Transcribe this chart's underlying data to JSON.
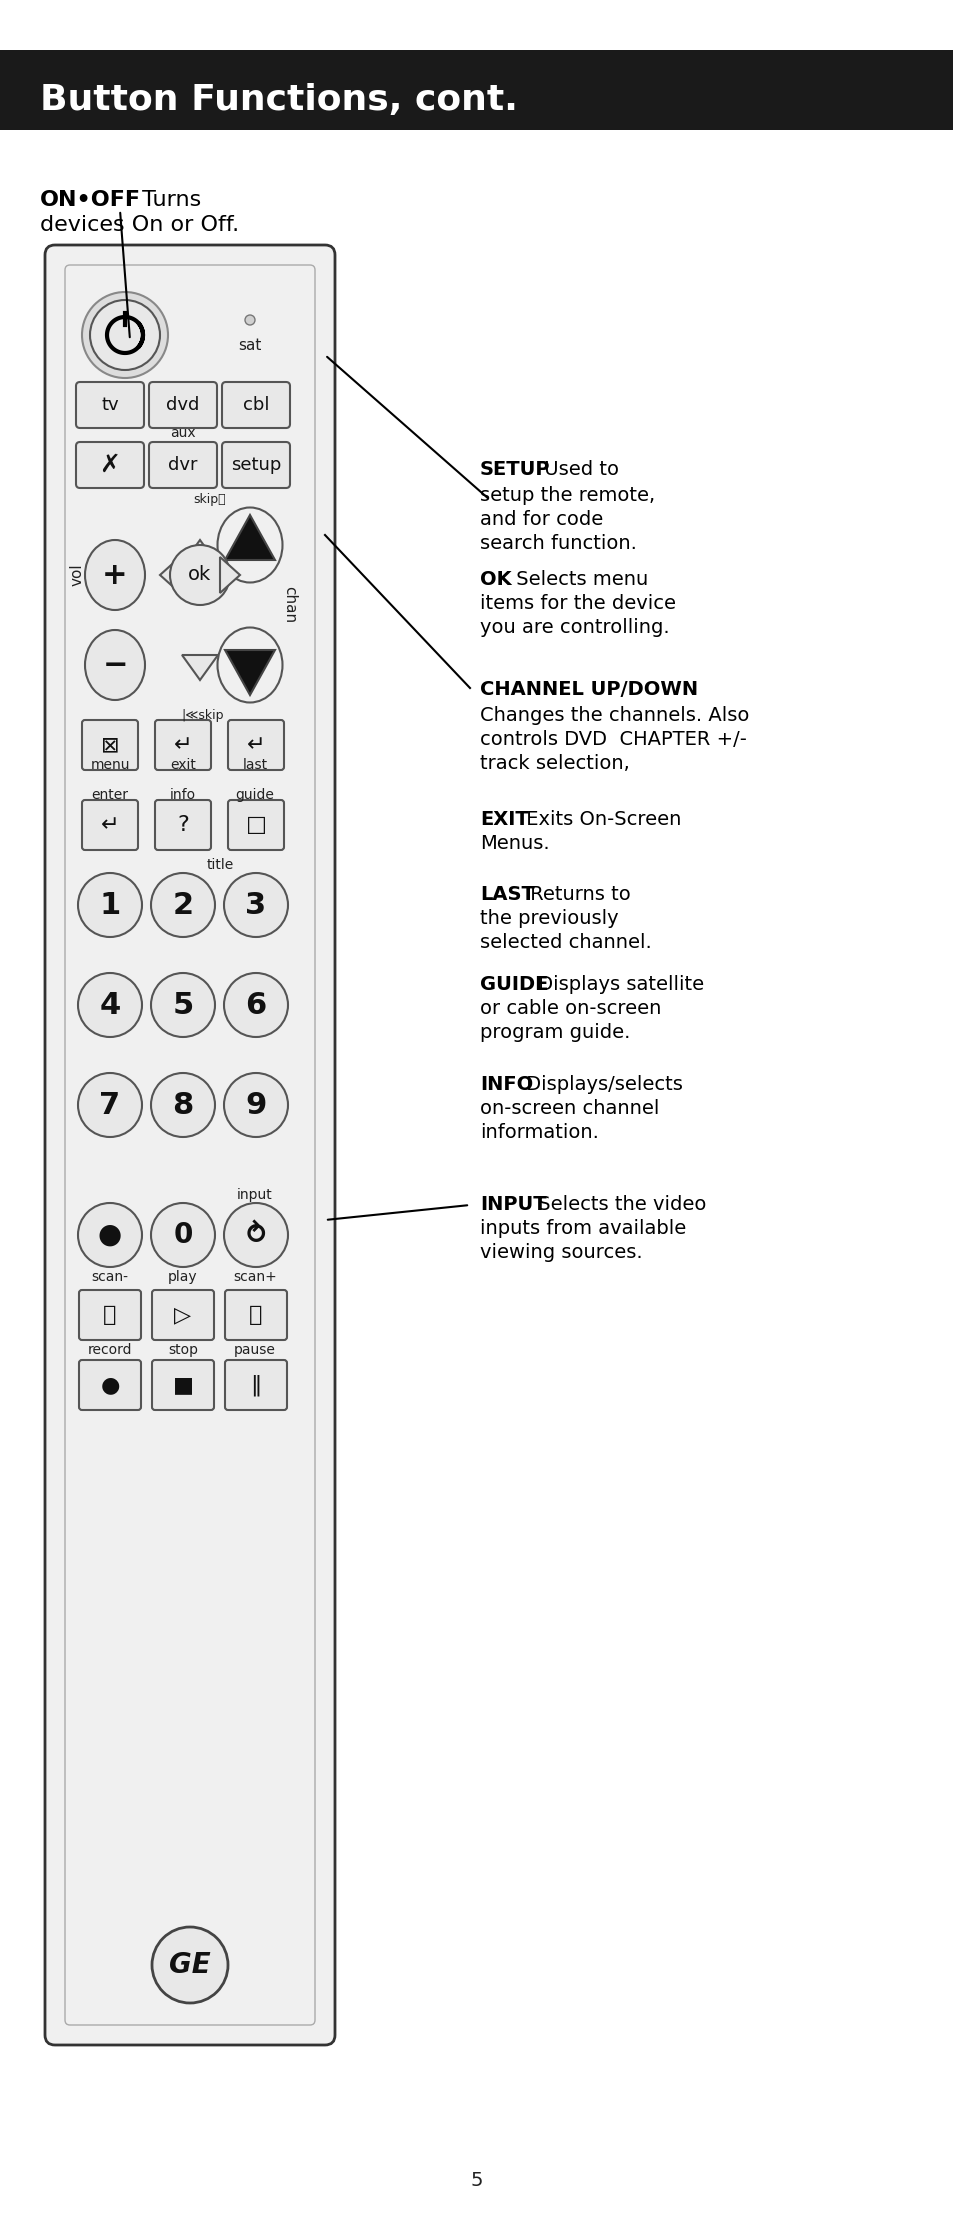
{
  "title": "Button Functions, cont.",
  "title_bg": "#1a1a1a",
  "title_color": "#ffffff",
  "bg_color": "#ffffff",
  "page_number": "5",
  "on_off_bold": "ON•OFF",
  "on_off_text": " Turns\ndevices On or Off.",
  "setup_bold": "SETUP",
  "setup_text": " Used to\nsetup the remote,\nand for code\nsearch function.",
  "ok_bold": "OK",
  "ok_text": " Selects menu\nitems for the device\nyou are controlling.",
  "channel_bold": "CHANNEL UP/DOWN",
  "channel_text": "\nChanges the channels. Also\ncontrols DVD  CHAPTER +/-\ntrack selection,",
  "exit_bold": "EXIT",
  "exit_text": " Exits On-Screen\nMenus.",
  "last_bold": "LAST",
  "last_text": " Returns to\nthe previously\nselected channel.",
  "guide_bold": "GUIDE",
  "guide_text": " Displays satellite\nor cable on-screen\nprogram guide.",
  "info_bold": "INFO",
  "info_text": " Displays/selects\non-screen channel\ninformation.",
  "input_bold": "INPUT",
  "input_text": " Selects the video\ninputs from available\nviewing sources."
}
